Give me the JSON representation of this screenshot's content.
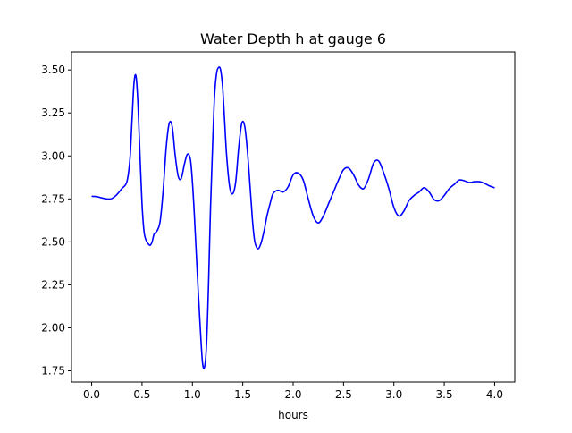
{
  "chart_data": {
    "type": "line",
    "title": "Water Depth h at gauge 6",
    "xlabel": "hours",
    "ylabel": "",
    "xlim": [
      -0.2,
      4.2
    ],
    "ylim": [
      1.685,
      3.605
    ],
    "xticks": [
      0.0,
      0.5,
      1.0,
      1.5,
      2.0,
      2.5,
      3.0,
      3.5,
      4.0
    ],
    "xtick_labels": [
      "0.0",
      "0.5",
      "1.0",
      "1.5",
      "2.0",
      "2.5",
      "3.0",
      "3.5",
      "4.0"
    ],
    "yticks": [
      1.75,
      2.0,
      2.25,
      2.5,
      2.75,
      3.0,
      3.25,
      3.5
    ],
    "ytick_labels": [
      "1.75",
      "2.00",
      "2.25",
      "2.50",
      "2.75",
      "3.00",
      "3.25",
      "3.50"
    ],
    "grid": false,
    "series": [
      {
        "color": "#0000ff",
        "x": [
          0.0,
          0.05,
          0.1,
          0.15,
          0.2,
          0.25,
          0.3,
          0.35,
          0.38,
          0.4,
          0.42,
          0.44,
          0.46,
          0.48,
          0.5,
          0.52,
          0.54,
          0.56,
          0.58,
          0.6,
          0.62,
          0.65,
          0.68,
          0.71,
          0.74,
          0.77,
          0.8,
          0.83,
          0.86,
          0.89,
          0.92,
          0.95,
          0.98,
          1.0,
          1.02,
          1.05,
          1.08,
          1.1,
          1.12,
          1.14,
          1.16,
          1.18,
          1.2,
          1.22,
          1.24,
          1.26,
          1.28,
          1.3,
          1.32,
          1.34,
          1.37,
          1.4,
          1.43,
          1.46,
          1.49,
          1.52,
          1.55,
          1.58,
          1.6,
          1.62,
          1.65,
          1.68,
          1.71,
          1.74,
          1.77,
          1.8,
          1.85,
          1.9,
          1.95,
          2.0,
          2.05,
          2.1,
          2.15,
          2.2,
          2.25,
          2.3,
          2.35,
          2.4,
          2.45,
          2.5,
          2.55,
          2.6,
          2.65,
          2.7,
          2.75,
          2.8,
          2.85,
          2.9,
          2.95,
          3.0,
          3.05,
          3.1,
          3.15,
          3.2,
          3.25,
          3.3,
          3.35,
          3.4,
          3.45,
          3.5,
          3.55,
          3.6,
          3.65,
          3.7,
          3.75,
          3.8,
          3.85,
          3.9,
          3.95,
          4.0
        ],
        "y": [
          2.765,
          2.763,
          2.756,
          2.75,
          2.752,
          2.775,
          2.81,
          2.85,
          2.98,
          3.2,
          3.42,
          3.465,
          3.3,
          3.0,
          2.72,
          2.56,
          2.51,
          2.49,
          2.48,
          2.5,
          2.545,
          2.565,
          2.62,
          2.8,
          3.05,
          3.19,
          3.17,
          3.0,
          2.88,
          2.87,
          2.95,
          3.01,
          2.98,
          2.85,
          2.65,
          2.3,
          1.98,
          1.8,
          1.77,
          1.9,
          2.25,
          2.7,
          3.05,
          3.35,
          3.48,
          3.515,
          3.5,
          3.4,
          3.2,
          3.0,
          2.82,
          2.78,
          2.85,
          3.05,
          3.19,
          3.17,
          3.0,
          2.76,
          2.6,
          2.5,
          2.46,
          2.49,
          2.56,
          2.65,
          2.72,
          2.78,
          2.8,
          2.79,
          2.82,
          2.89,
          2.9,
          2.86,
          2.75,
          2.65,
          2.61,
          2.65,
          2.72,
          2.79,
          2.86,
          2.92,
          2.93,
          2.89,
          2.83,
          2.81,
          2.87,
          2.96,
          2.97,
          2.9,
          2.81,
          2.7,
          2.65,
          2.68,
          2.74,
          2.77,
          2.79,
          2.815,
          2.79,
          2.745,
          2.74,
          2.77,
          2.81,
          2.835,
          2.86,
          2.855,
          2.845,
          2.85,
          2.85,
          2.84,
          2.825,
          2.815
        ]
      }
    ]
  }
}
